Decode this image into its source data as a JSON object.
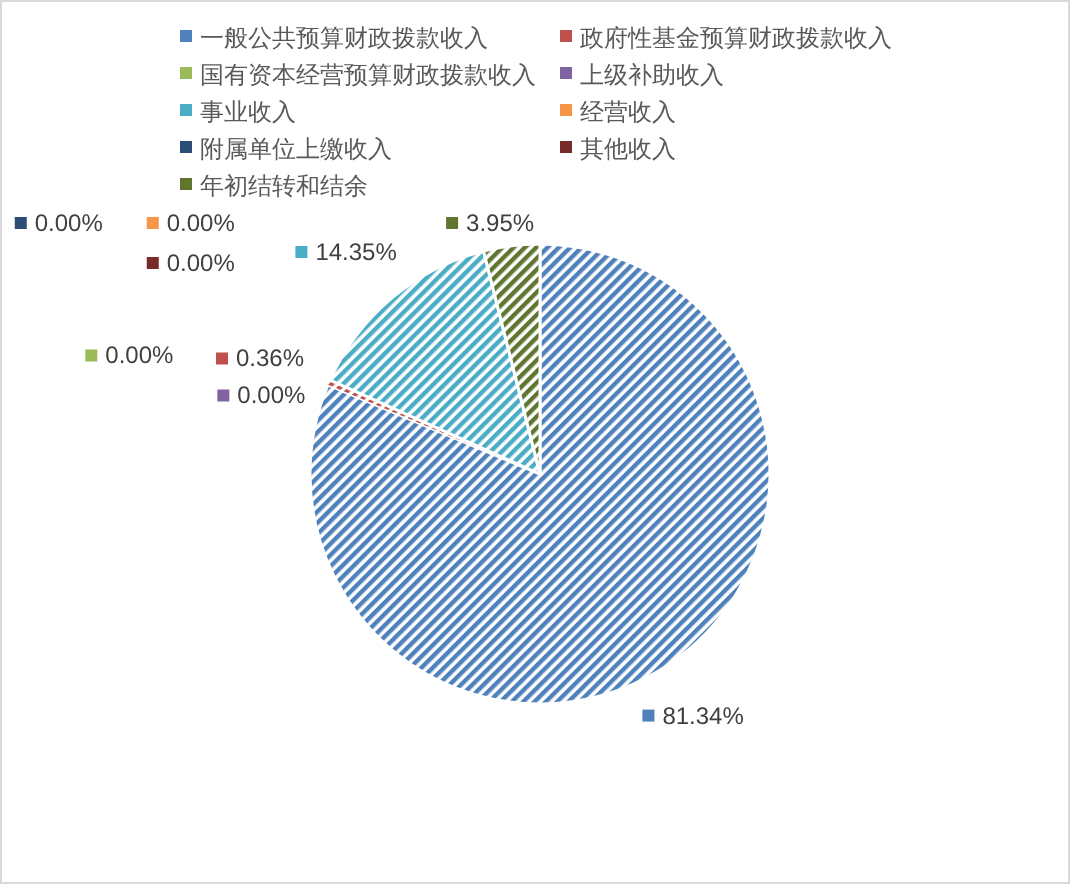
{
  "chart_data": {
    "type": "pie",
    "categories": [
      "一般公共预算财政拨款收入",
      "政府性基金预算财政拨款收入",
      "国有资本经营预算财政拨款收入",
      "上级补助收入",
      "事业收入",
      "经营收入",
      "附属单位上缴收入",
      "其他收入",
      "年初结转和结余"
    ],
    "values": [
      81.34,
      0.36,
      0,
      0,
      14.35,
      0,
      0,
      0,
      3.95
    ],
    "colors": [
      "#4f81bd",
      "#c0504d",
      "#9bbb59",
      "#8064a2",
      "#4bacc6",
      "#f79646",
      "#2c4d75",
      "#772c2a",
      "#5f7530"
    ],
    "value_labels": [
      "81.34%",
      "0.36%",
      "0.00%",
      "0.00%",
      "14.35%",
      "0.00%",
      "0.00%",
      "0.00%",
      "3.95%"
    ],
    "legend": "top"
  }
}
